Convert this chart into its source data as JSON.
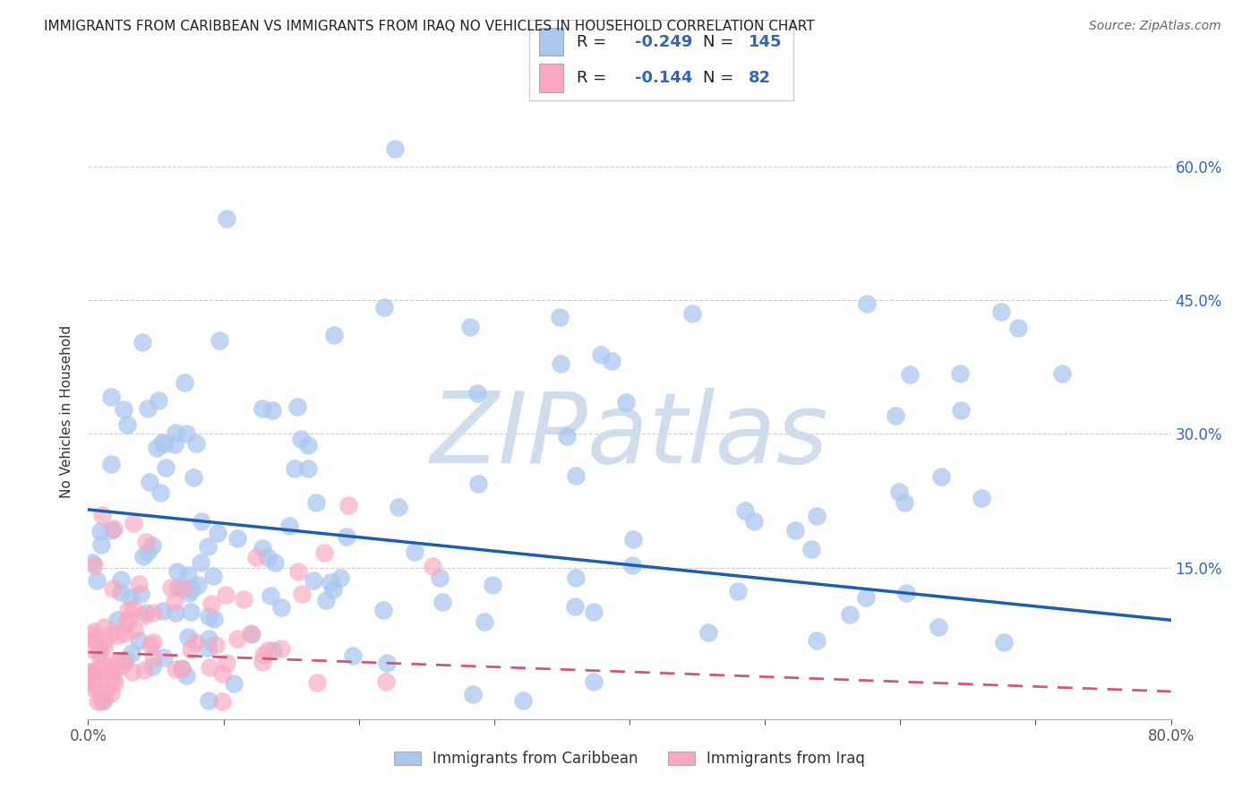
{
  "title": "IMMIGRANTS FROM CARIBBEAN VS IMMIGRANTS FROM IRAQ NO VEHICLES IN HOUSEHOLD CORRELATION CHART",
  "source": "Source: ZipAtlas.com",
  "ylabel": "No Vehicles in Household",
  "ytick_vals": [
    0.6,
    0.45,
    0.3,
    0.15
  ],
  "ytick_labels": [
    "60.0%",
    "45.0%",
    "30.0%",
    "15.0%"
  ],
  "xlim": [
    0.0,
    0.8
  ],
  "ylim": [
    -0.02,
    0.67
  ],
  "caribbean_R": -0.249,
  "caribbean_N": 145,
  "iraq_R": -0.144,
  "iraq_N": 82,
  "caribbean_color": "#aac8f0",
  "iraq_color": "#f8a8c0",
  "caribbean_line_color": "#1a5fb4",
  "iraq_line_color": "#d05878",
  "background_color": "#ffffff",
  "legend_labels": [
    "Immigrants from Caribbean",
    "Immigrants from Iraq"
  ],
  "watermark": "ZIPatlas",
  "watermark_color": "#d0dded",
  "title_fontsize": 11,
  "source_fontsize": 10,
  "carib_slope": -0.155,
  "carib_intercept": 0.215,
  "iraq_slope": -0.055,
  "iraq_intercept": 0.055
}
